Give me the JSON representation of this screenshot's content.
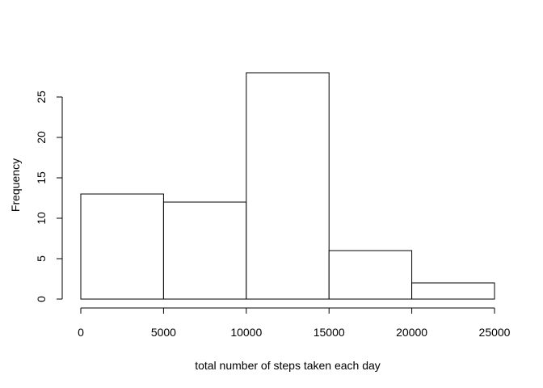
{
  "chart_data": {
    "type": "bar",
    "histogram": true,
    "title": "",
    "xlabel": "total number of steps taken each day",
    "ylabel": "Frequency",
    "bins": [
      {
        "from": 0,
        "to": 5000,
        "count": 13
      },
      {
        "from": 5000,
        "to": 10000,
        "count": 12
      },
      {
        "from": 10000,
        "to": 15000,
        "count": 28
      },
      {
        "from": 15000,
        "to": 20000,
        "count": 6
      },
      {
        "from": 20000,
        "to": 25000,
        "count": 2
      }
    ],
    "xlim": [
      0,
      25000
    ],
    "ylim": [
      0,
      28
    ],
    "x_ticks": [
      0,
      5000,
      10000,
      15000,
      20000,
      25000
    ],
    "x_tick_labels": [
      "0",
      "5000",
      "10000",
      "15000",
      "20000",
      "25000"
    ],
    "y_ticks": [
      0,
      5,
      10,
      15,
      20,
      25
    ],
    "y_tick_labels": [
      "0",
      "5",
      "10",
      "15",
      "20",
      "25"
    ],
    "grid": false,
    "legend": "none"
  }
}
